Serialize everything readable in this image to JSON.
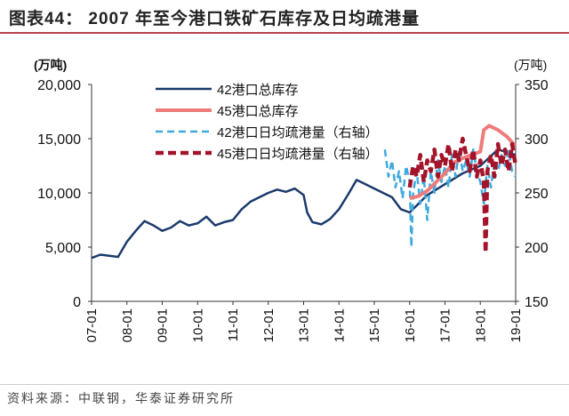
{
  "title": "图表44：  2007 年至今港口铁矿石库存及日均疏港量",
  "source": "资料来源：中联钢，华泰证券研究所",
  "chart_data": {
    "type": "line",
    "title": "2007 年至今港口铁矿石库存及日均疏港量",
    "ylabel_left": "(万吨)",
    "ylabel_right": "(万吨)",
    "ylim_left": [
      0,
      20000
    ],
    "ylim_right": [
      150,
      350
    ],
    "yticks_left": [
      "0",
      "5,000",
      "10,000",
      "15,000",
      "20,000"
    ],
    "yticks_left_values": [
      0,
      5000,
      10000,
      15000,
      20000
    ],
    "yticks_right": [
      "150",
      "200",
      "250",
      "300",
      "350"
    ],
    "yticks_right_values": [
      150,
      200,
      250,
      300,
      350
    ],
    "xticks": [
      "07-01",
      "08-01",
      "09-01",
      "10-01",
      "11-01",
      "12-01",
      "13-01",
      "14-01",
      "15-01",
      "16-01",
      "17-01",
      "18-01",
      "19-01"
    ],
    "x_unit": "years since 2007-01",
    "series": [
      {
        "name": "42港口总库存",
        "axis": "left",
        "color": "#1b3a6b",
        "style": "solid",
        "points": [
          [
            0,
            4000
          ],
          [
            0.25,
            4300
          ],
          [
            0.5,
            4200
          ],
          [
            0.75,
            4100
          ],
          [
            1,
            5500
          ],
          [
            1.25,
            6500
          ],
          [
            1.5,
            7400
          ],
          [
            1.75,
            7000
          ],
          [
            2,
            6500
          ],
          [
            2.25,
            6800
          ],
          [
            2.5,
            7400
          ],
          [
            2.75,
            7000
          ],
          [
            3,
            7200
          ],
          [
            3.25,
            7800
          ],
          [
            3.5,
            7000
          ],
          [
            3.75,
            7300
          ],
          [
            4,
            7500
          ],
          [
            4.25,
            8500
          ],
          [
            4.5,
            9200
          ],
          [
            4.75,
            9600
          ],
          [
            5,
            10000
          ],
          [
            5.25,
            10300
          ],
          [
            5.5,
            10100
          ],
          [
            5.75,
            10400
          ],
          [
            6,
            9800
          ],
          [
            6.1,
            8200
          ],
          [
            6.25,
            7300
          ],
          [
            6.5,
            7100
          ],
          [
            6.75,
            7600
          ],
          [
            7,
            8500
          ],
          [
            7.25,
            9800
          ],
          [
            7.5,
            11200
          ],
          [
            7.75,
            10800
          ],
          [
            8,
            10400
          ],
          [
            8.25,
            10000
          ],
          [
            8.5,
            9600
          ],
          [
            8.75,
            8500
          ],
          [
            9,
            8200
          ],
          [
            9.25,
            9000
          ],
          [
            9.5,
            9800
          ],
          [
            9.75,
            10300
          ],
          [
            10,
            10800
          ],
          [
            10.5,
            11800
          ],
          [
            11,
            12500
          ],
          [
            11.5,
            14000
          ],
          [
            12,
            13500
          ]
        ]
      },
      {
        "name": "45港口总库存",
        "axis": "left",
        "color": "#ef7b7b",
        "style": "solid-thick",
        "points": [
          [
            9,
            9500
          ],
          [
            9.25,
            9700
          ],
          [
            9.5,
            10200
          ],
          [
            9.75,
            11000
          ],
          [
            10,
            11800
          ],
          [
            10.25,
            12800
          ],
          [
            10.5,
            13200
          ],
          [
            10.75,
            13500
          ],
          [
            11,
            13800
          ],
          [
            11.1,
            15800
          ],
          [
            11.25,
            16200
          ],
          [
            11.5,
            15800
          ],
          [
            11.75,
            15200
          ],
          [
            12,
            14300
          ]
        ]
      },
      {
        "name": "42港口日均疏港量（右轴）",
        "axis": "right",
        "color": "#3fa9dd",
        "style": "dashed",
        "points": [
          [
            8.3,
            290
          ],
          [
            8.4,
            265
          ],
          [
            8.5,
            280
          ],
          [
            8.6,
            255
          ],
          [
            8.7,
            270
          ],
          [
            8.8,
            245
          ],
          [
            8.9,
            275
          ],
          [
            9.0,
            260
          ],
          [
            9.05,
            200
          ],
          [
            9.1,
            250
          ],
          [
            9.2,
            270
          ],
          [
            9.3,
            240
          ],
          [
            9.4,
            265
          ],
          [
            9.5,
            225
          ],
          [
            9.6,
            270
          ],
          [
            9.7,
            250
          ],
          [
            9.8,
            280
          ],
          [
            9.9,
            260
          ],
          [
            10,
            275
          ],
          [
            10.1,
            255
          ],
          [
            10.2,
            285
          ],
          [
            10.3,
            265
          ],
          [
            10.4,
            290
          ],
          [
            10.5,
            270
          ],
          [
            10.6,
            280
          ],
          [
            10.7,
            265
          ],
          [
            10.8,
            290
          ],
          [
            10.9,
            270
          ],
          [
            11,
            260
          ],
          [
            11.1,
            240
          ],
          [
            11.2,
            275
          ],
          [
            11.3,
            255
          ],
          [
            11.4,
            280
          ],
          [
            11.5,
            270
          ],
          [
            11.6,
            285
          ],
          [
            11.7,
            275
          ],
          [
            11.8,
            290
          ],
          [
            11.9,
            270
          ],
          [
            12,
            265
          ]
        ]
      },
      {
        "name": "45港口日均疏港量（右轴）",
        "axis": "right",
        "color": "#a3142a",
        "style": "dashed-thick",
        "points": [
          [
            9.0,
            255
          ],
          [
            9.1,
            275
          ],
          [
            9.2,
            265
          ],
          [
            9.3,
            285
          ],
          [
            9.4,
            260
          ],
          [
            9.5,
            280
          ],
          [
            9.6,
            270
          ],
          [
            9.7,
            290
          ],
          [
            9.8,
            265
          ],
          [
            9.9,
            285
          ],
          [
            10,
            275
          ],
          [
            10.1,
            295
          ],
          [
            10.2,
            270
          ],
          [
            10.3,
            290
          ],
          [
            10.4,
            280
          ],
          [
            10.5,
            300
          ],
          [
            10.6,
            285
          ],
          [
            10.7,
            270
          ],
          [
            10.8,
            290
          ],
          [
            10.9,
            265
          ],
          [
            11,
            280
          ],
          [
            11.1,
            260
          ],
          [
            11.15,
            195
          ],
          [
            11.2,
            270
          ],
          [
            11.3,
            285
          ],
          [
            11.4,
            265
          ],
          [
            11.5,
            295
          ],
          [
            11.6,
            275
          ],
          [
            11.7,
            290
          ],
          [
            11.8,
            270
          ],
          [
            11.9,
            295
          ],
          [
            12,
            275
          ]
        ]
      }
    ],
    "legend_position": "top-left-inside",
    "grid": false
  }
}
